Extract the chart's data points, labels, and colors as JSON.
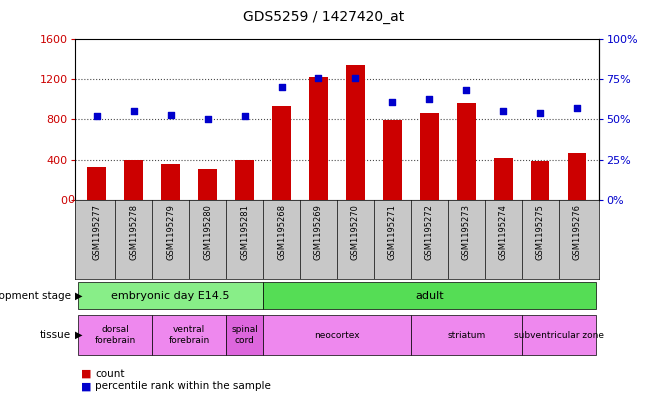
{
  "title": "GDS5259 / 1427420_at",
  "samples": [
    "GSM1195277",
    "GSM1195278",
    "GSM1195279",
    "GSM1195280",
    "GSM1195281",
    "GSM1195268",
    "GSM1195269",
    "GSM1195270",
    "GSM1195271",
    "GSM1195272",
    "GSM1195273",
    "GSM1195274",
    "GSM1195275",
    "GSM1195276"
  ],
  "counts": [
    330,
    400,
    360,
    305,
    400,
    930,
    1220,
    1340,
    790,
    860,
    960,
    415,
    390,
    470
  ],
  "percentiles": [
    52,
    55,
    53,
    50,
    52,
    70,
    76,
    76,
    61,
    63,
    68,
    55,
    54,
    57
  ],
  "ylim_left": [
    0,
    1600
  ],
  "ylim_right": [
    0,
    100
  ],
  "yticks_left": [
    0,
    400,
    800,
    1200,
    1600
  ],
  "yticks_right": [
    0,
    25,
    50,
    75,
    100
  ],
  "yticklabels_right": [
    "0%",
    "25%",
    "50%",
    "75%",
    "100%"
  ],
  "bar_color": "#cc0000",
  "scatter_color": "#0000cc",
  "bar_width": 0.5,
  "dev_stage_groups": [
    {
      "label": "embryonic day E14.5",
      "start": 0,
      "end": 5,
      "color": "#88ee88"
    },
    {
      "label": "adult",
      "start": 5,
      "end": 14,
      "color": "#55dd55"
    }
  ],
  "tissue_groups": [
    {
      "label": "dorsal\nforebrain",
      "start": 0,
      "end": 2,
      "color": "#ee88ee"
    },
    {
      "label": "ventral\nforebrain",
      "start": 2,
      "end": 4,
      "color": "#ee88ee"
    },
    {
      "label": "spinal\ncord",
      "start": 4,
      "end": 5,
      "color": "#dd66dd"
    },
    {
      "label": "neocortex",
      "start": 5,
      "end": 9,
      "color": "#ee88ee"
    },
    {
      "label": "striatum",
      "start": 9,
      "end": 12,
      "color": "#ee88ee"
    },
    {
      "label": "subventricular zone",
      "start": 12,
      "end": 14,
      "color": "#ee88ee"
    }
  ],
  "legend_count_label": "count",
  "legend_pct_label": "percentile rank within the sample",
  "dev_stage_label": "development stage",
  "tissue_label": "tissue",
  "grid_color": "#000000",
  "xtick_bg_color": "#c8c8c8",
  "plot_bg_color": "#ffffff"
}
